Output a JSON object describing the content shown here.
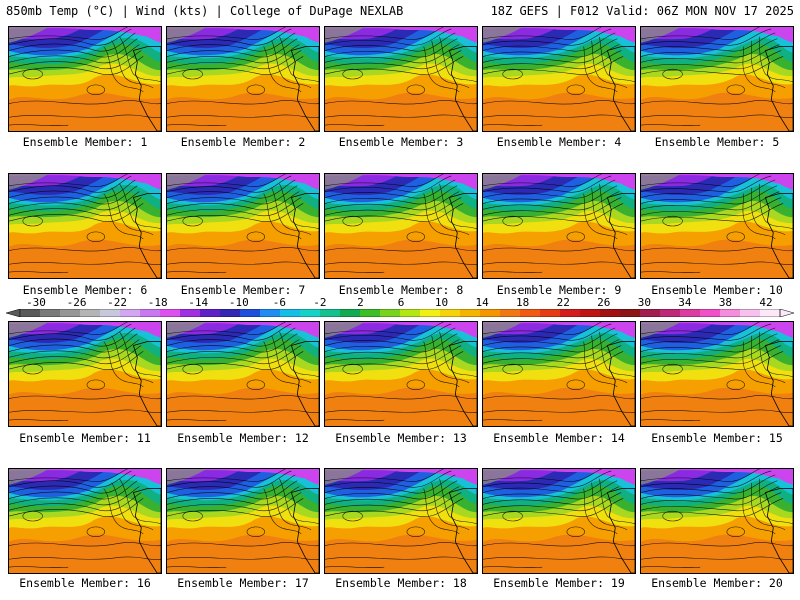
{
  "header": {
    "title": "850mb Temp (°C) | Wind (kts) | College of DuPage NEXLAB",
    "run": "18Z GEFS | F012 Valid: 06Z MON NOV 17 2025"
  },
  "members": [
    "Ensemble Member: 1",
    "Ensemble Member: 2",
    "Ensemble Member: 3",
    "Ensemble Member: 4",
    "Ensemble Member: 5",
    "Ensemble Member: 6",
    "Ensemble Member: 7",
    "Ensemble Member: 8",
    "Ensemble Member: 9",
    "Ensemble Member: 10",
    "Ensemble Member: 11",
    "Ensemble Member: 12",
    "Ensemble Member: 13",
    "Ensemble Member: 14",
    "Ensemble Member: 15",
    "Ensemble Member: 16",
    "Ensemble Member: 17",
    "Ensemble Member: 18",
    "Ensemble Member: 19",
    "Ensemble Member: 20"
  ],
  "colorbar": {
    "ticks": [
      "-30",
      "-26",
      "-22",
      "-18",
      "-14",
      "-10",
      "-6",
      "-2",
      "2",
      "6",
      "10",
      "14",
      "18",
      "22",
      "26",
      "30",
      "34",
      "38",
      "42"
    ],
    "colors": [
      "#5a5a5a",
      "#7a7a7a",
      "#969696",
      "#b4b4b4",
      "#c8c8dc",
      "#d2a6f0",
      "#c878f0",
      "#dc50f0",
      "#a030e0",
      "#6020c8",
      "#3228b4",
      "#1e50dc",
      "#1e8cf0",
      "#14bee6",
      "#14d2c8",
      "#12c090",
      "#10aa50",
      "#3cbe28",
      "#78d21e",
      "#b4e614",
      "#f0f014",
      "#f5d20a",
      "#f5b400",
      "#f59600",
      "#f07814",
      "#f05a14",
      "#e63c14",
      "#d21e1e",
      "#be1414",
      "#a01010",
      "#8c1414",
      "#a01e50",
      "#be2878",
      "#dc3ca0",
      "#f050c8",
      "#f58cdc",
      "#f8c0ec",
      "#fce8f8"
    ]
  },
  "map_colors": {
    "gray": "#8a8a8a",
    "magenta": "#cc44ee",
    "purple": "#8a2be2",
    "navy": "#2a2ab4",
    "blue": "#1e60e0",
    "cyan": "#18c0d8",
    "teal": "#10b080",
    "green": "#38b030",
    "lime": "#a8d820",
    "yellow": "#f0e010",
    "orange": "#f5a000",
    "dark_orange": "#f08010"
  }
}
